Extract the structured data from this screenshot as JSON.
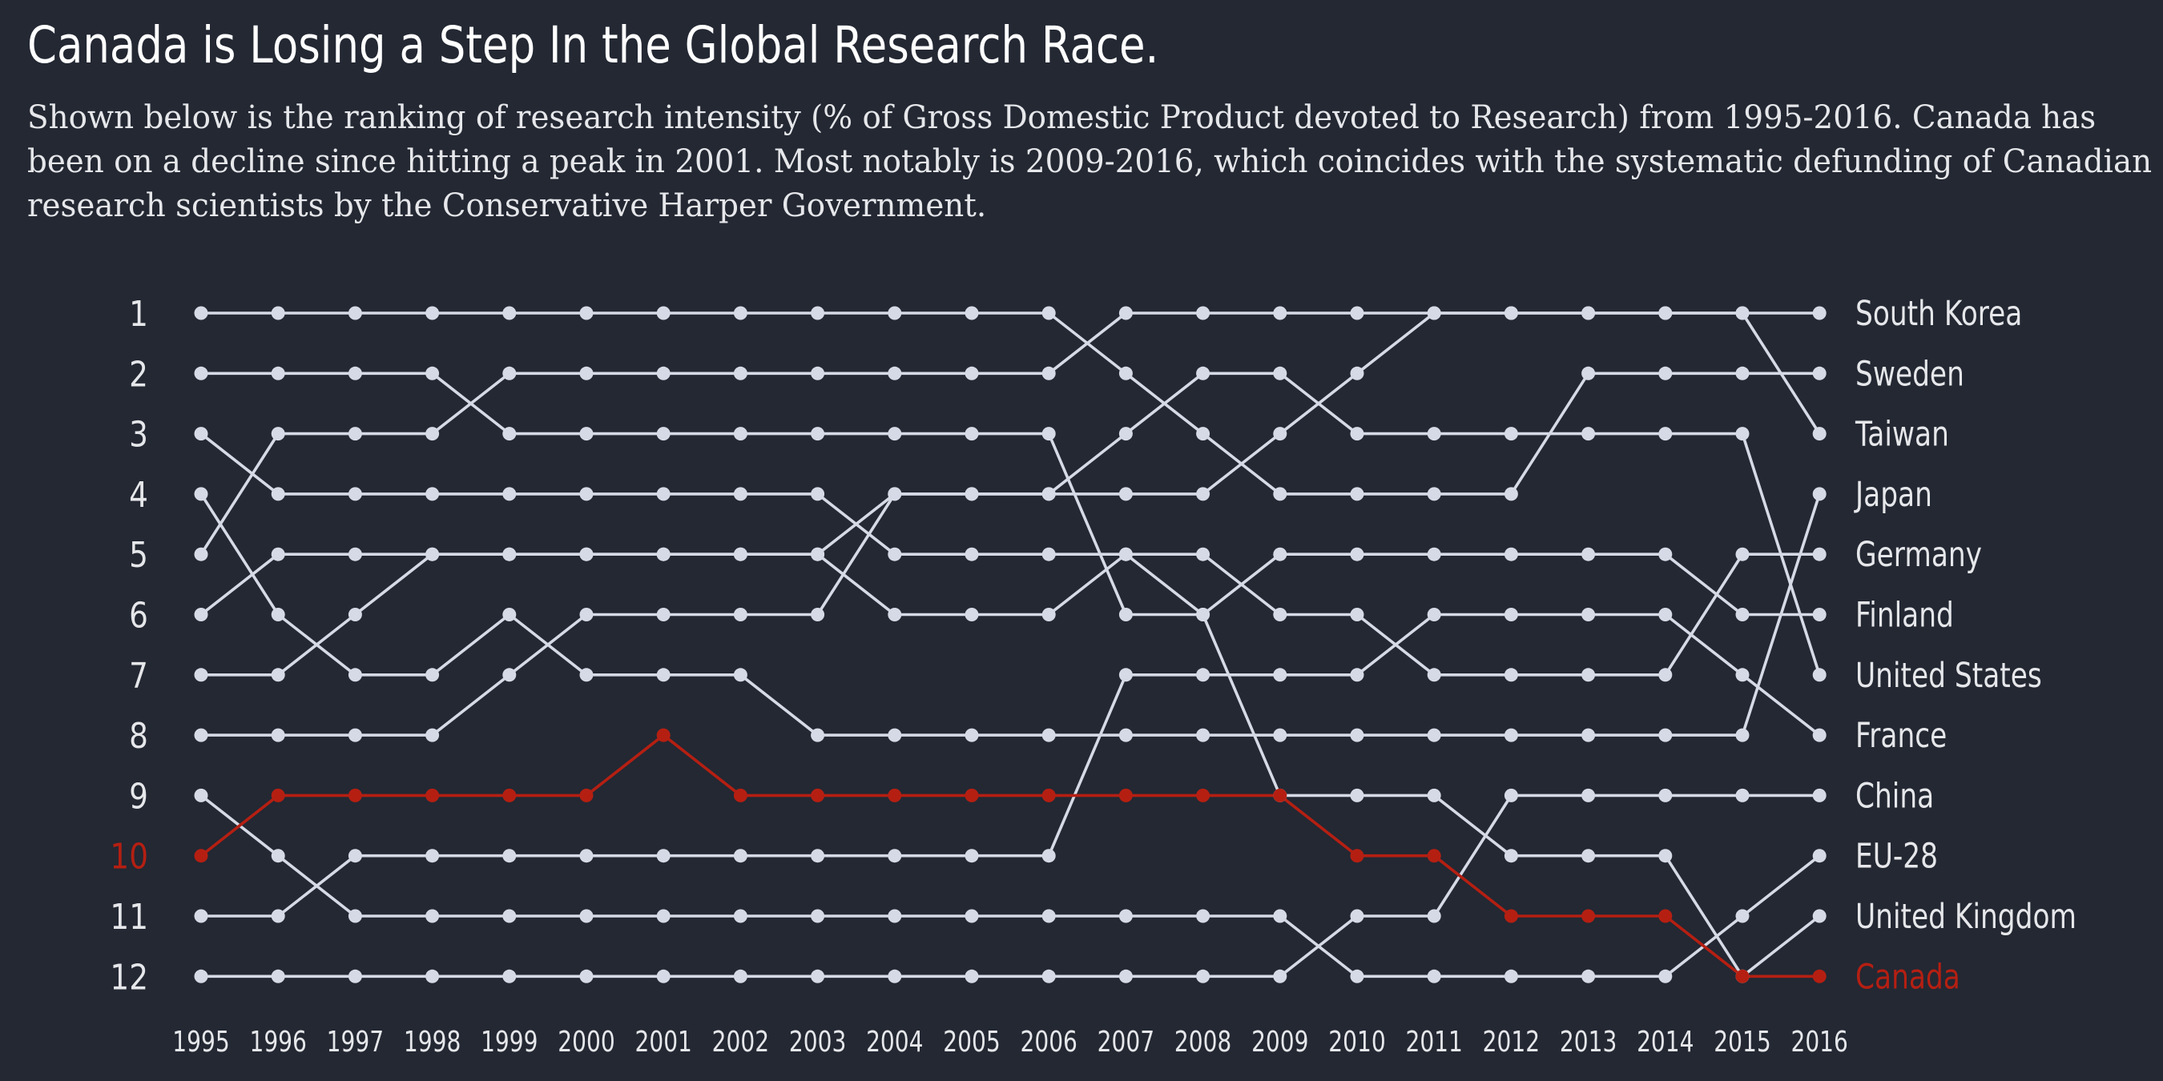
{
  "title": "Canada is Losing a Step In the Global Research Race.",
  "subtitle": "Shown below is the ranking of research intensity (% of Gross Domestic Product devoted to Research) from 1995-2016. Canada has been on a decline since hitting a peak in 2001. Most notably is 2009-2016, which coincides with the systematic defunding of Canadian research scientists by the Conservative Harper Government.",
  "colors": {
    "background": "#232833",
    "line": "#d6dae6",
    "highlight": "#b51f12",
    "text": "#e6e7ea"
  },
  "chart_data": {
    "type": "line",
    "x": [
      1995,
      1996,
      1997,
      1998,
      1999,
      2000,
      2001,
      2002,
      2003,
      2004,
      2005,
      2006,
      2007,
      2008,
      2009,
      2010,
      2011,
      2012,
      2013,
      2014,
      2015,
      2016
    ],
    "y_ticks": [
      1,
      2,
      3,
      4,
      5,
      6,
      7,
      8,
      9,
      10,
      11,
      12
    ],
    "highlight_tick": 10,
    "y_reversed": true,
    "highlight_series": "Canada",
    "series": [
      {
        "name": "South Korea",
        "values": [
          5,
          3,
          3,
          3,
          2,
          2,
          2,
          2,
          2,
          2,
          2,
          2,
          1,
          1,
          1,
          1,
          1,
          1,
          1,
          1,
          1,
          1
        ]
      },
      {
        "name": "Sweden",
        "values": [
          1,
          1,
          1,
          1,
          1,
          1,
          1,
          1,
          1,
          1,
          1,
          1,
          2,
          3,
          4,
          4,
          4,
          4,
          2,
          2,
          2,
          2
        ]
      },
      {
        "name": "Taiwan",
        "values": [
          6,
          5,
          5,
          5,
          5,
          5,
          5,
          5,
          5,
          4,
          4,
          4,
          4,
          4,
          3,
          2,
          1,
          1,
          1,
          1,
          1,
          3
        ]
      },
      {
        "name": "Japan",
        "values": [
          4,
          6,
          7,
          7,
          6,
          7,
          7,
          7,
          8,
          8,
          8,
          8,
          8,
          8,
          8,
          8,
          8,
          8,
          8,
          8,
          8,
          4
        ]
      },
      {
        "name": "Germany",
        "values": [
          7,
          7,
          6,
          5,
          5,
          5,
          5,
          5,
          5,
          6,
          6,
          6,
          5,
          5,
          6,
          6,
          7,
          7,
          7,
          7,
          5,
          5
        ]
      },
      {
        "name": "Finland",
        "values": [
          3,
          4,
          4,
          4,
          4,
          4,
          4,
          4,
          4,
          5,
          5,
          5,
          5,
          6,
          5,
          5,
          5,
          5,
          5,
          5,
          6,
          6
        ]
      },
      {
        "name": "United States",
        "values": [
          8,
          8,
          8,
          8,
          7,
          6,
          6,
          6,
          6,
          4,
          4,
          4,
          3,
          2,
          2,
          3,
          3,
          3,
          3,
          3,
          3,
          7
        ]
      },
      {
        "name": "France",
        "values": [
          11,
          11,
          10,
          10,
          10,
          10,
          10,
          10,
          10,
          10,
          10,
          10,
          7,
          7,
          7,
          7,
          6,
          6,
          6,
          6,
          7,
          8
        ]
      },
      {
        "name": "China",
        "values": [
          12,
          12,
          12,
          12,
          12,
          12,
          12,
          12,
          12,
          12,
          12,
          12,
          12,
          12,
          12,
          11,
          11,
          9,
          9,
          9,
          9,
          9
        ]
      },
      {
        "name": "EU-28",
        "values": [
          9,
          10,
          11,
          11,
          11,
          11,
          11,
          11,
          11,
          11,
          11,
          11,
          11,
          11,
          11,
          12,
          12,
          12,
          12,
          12,
          11,
          10
        ]
      },
      {
        "name": "United Kingdom",
        "values": [
          2,
          2,
          2,
          2,
          3,
          3,
          3,
          3,
          3,
          3,
          3,
          3,
          6,
          6,
          9,
          9,
          9,
          10,
          10,
          10,
          12,
          11
        ]
      },
      {
        "name": "Canada",
        "values": [
          10,
          9,
          9,
          9,
          9,
          9,
          8,
          9,
          9,
          9,
          9,
          9,
          9,
          9,
          9,
          10,
          10,
          11,
          11,
          11,
          12,
          12
        ]
      }
    ],
    "end_labels": [
      "South Korea",
      "Sweden",
      "Taiwan",
      "Japan",
      "Germany",
      "Finland",
      "United States",
      "France",
      "China",
      "EU-28",
      "United Kingdom",
      "Canada"
    ],
    "grid": false,
    "legend": "end-labels"
  }
}
